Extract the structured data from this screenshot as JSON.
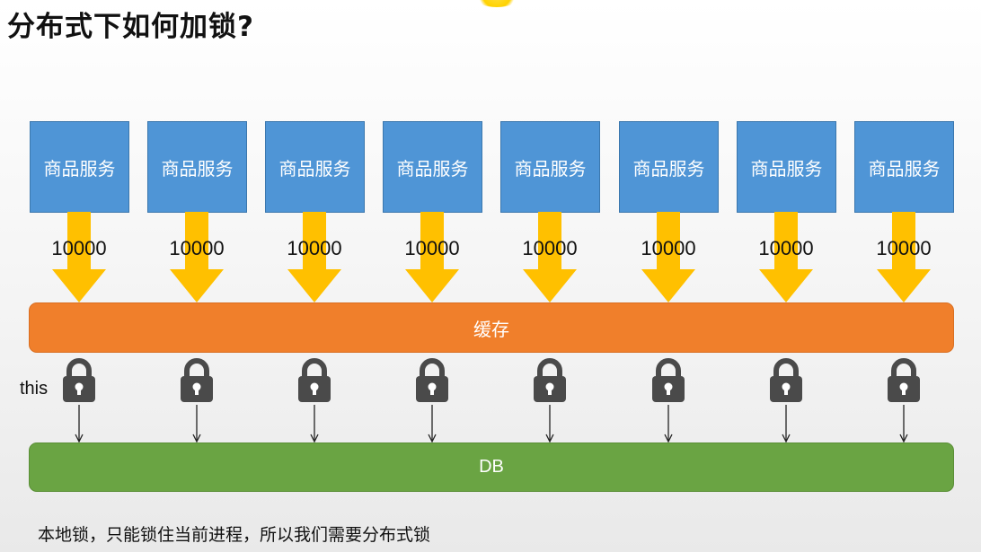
{
  "title": "分布式下如何加锁?",
  "services": [
    {
      "label": "商品服务",
      "count": "10000"
    },
    {
      "label": "商品服务",
      "count": "10000"
    },
    {
      "label": "商品服务",
      "count": "10000"
    },
    {
      "label": "商品服务",
      "count": "10000"
    },
    {
      "label": "商品服务",
      "count": "10000"
    },
    {
      "label": "商品服务",
      "count": "10000"
    },
    {
      "label": "商品服务",
      "count": "10000"
    },
    {
      "label": "商品服务",
      "count": "10000"
    }
  ],
  "cache_label": "缓存",
  "db_label": "DB",
  "lock_label": "this",
  "caption": "本地锁，只能锁住当前进程，所以我们需要分布式锁",
  "icons": {
    "lock": "lock-icon",
    "arrow": "down-arrow-icon"
  },
  "colors": {
    "service": "#4f95d6",
    "arrow": "#ffc000",
    "cache": "#f07f2b",
    "db": "#6aa443",
    "lock": "#4a4a4a"
  }
}
